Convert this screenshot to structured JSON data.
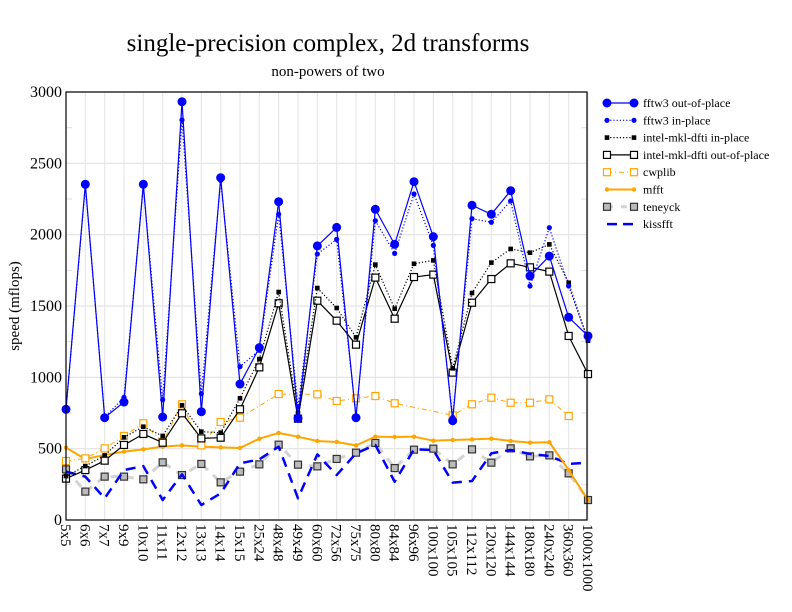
{
  "chart_data": {
    "type": "line",
    "title": "single-precision complex, 2d transforms",
    "subtitle": "non-powers of two",
    "xlabel": "",
    "ylabel": "speed (mflops)",
    "ylim": [
      0,
      3000
    ],
    "yticks": [
      0,
      500,
      1000,
      1500,
      2000,
      2500,
      3000
    ],
    "grid": true,
    "legend_position": "right",
    "categories": [
      "5x5",
      "6x6",
      "7x7",
      "9x9",
      "10x10",
      "11x11",
      "12x12",
      "13x13",
      "14x14",
      "15x15",
      "25x24",
      "48x48",
      "49x49",
      "60x60",
      "72x56",
      "75x75",
      "80x80",
      "84x84",
      "96x96",
      "100x100",
      "105x105",
      "112x112",
      "120x120",
      "144x144",
      "180x180",
      "240x240",
      "360x360",
      "1000x1000"
    ],
    "series": [
      {
        "name": "fftw3 out-of-place",
        "color": "#0000ff",
        "style": "solid",
        "marker": "circle-large",
        "values": [
          776,
          2353,
          717,
          827,
          2353,
          722,
          2932,
          759,
          2399,
          953,
          1208,
          2231,
          713,
          1921,
          2051,
          717,
          2178,
          1932,
          2371,
          1986,
          696,
          2206,
          2143,
          2308,
          1710,
          1850,
          1421,
          1290
        ]
      },
      {
        "name": "fftw3 in-place",
        "color": "#0000ff",
        "style": "dotted",
        "marker": "circle-small",
        "values": [
          776,
          2340,
          720,
          860,
          2340,
          843,
          2804,
          885,
          2380,
          1075,
          1190,
          2143,
          794,
          1864,
          1967,
          730,
          2098,
          1869,
          2285,
          1925,
          720,
          2112,
          2087,
          2236,
          1640,
          2049,
          1640,
          1262
        ]
      },
      {
        "name": "intel-mkl-dfti in-place",
        "color": "#000000",
        "style": "dotted",
        "marker": "square-filled",
        "values": [
          308,
          378,
          453,
          580,
          654,
          589,
          804,
          619,
          612,
          853,
          1128,
          1598,
          748,
          1626,
          1486,
          1280,
          1790,
          1481,
          1796,
          1820,
          1063,
          1591,
          1804,
          1900,
          1874,
          1932,
          1663,
          1257
        ]
      },
      {
        "name": "intel-mkl-dfti out-of-place",
        "color": "#000000",
        "style": "solid",
        "marker": "square-open",
        "values": [
          290,
          350,
          416,
          526,
          603,
          542,
          748,
          572,
          577,
          776,
          1070,
          1519,
          710,
          1537,
          1397,
          1229,
          1699,
          1411,
          1703,
          1720,
          1033,
          1523,
          1689,
          1799,
          1771,
          1741,
          1290,
          1023
        ]
      },
      {
        "name": "cwplib",
        "color": "#ffa500",
        "style": "dashdot",
        "marker": "square-open",
        "values": [
          413,
          432,
          502,
          589,
          678,
          547,
          811,
          523,
          687,
          717,
          null,
          883,
          null,
          881,
          834,
          853,
          869,
          818,
          null,
          null,
          734,
          811,
          857,
          822,
          822,
          846,
          729,
          null
        ]
      },
      {
        "name": "mfft",
        "color": "#ffa500",
        "style": "solid-thick",
        "marker": "dot",
        "values": [
          507,
          427,
          456,
          479,
          495,
          514,
          523,
          514,
          509,
          505,
          570,
          610,
          584,
          554,
          547,
          523,
          584,
          582,
          584,
          556,
          561,
          565,
          570,
          554,
          542,
          545,
          350,
          140
        ]
      },
      {
        "name": "teneyck",
        "color": "#d3d3d3",
        "style": "dashed-light",
        "marker": "square-gray",
        "values": [
          355,
          199,
          304,
          304,
          285,
          404,
          315,
          393,
          264,
          339,
          390,
          528,
          388,
          376,
          428,
          472,
          540,
          364,
          493,
          500,
          390,
          495,
          402,
          502,
          446,
          453,
          327,
          140
        ]
      },
      {
        "name": "kissfft",
        "color": "#0000ff",
        "style": "dashed",
        "marker": "none",
        "values": [
          339,
          304,
          152,
          350,
          378,
          140,
          320,
          105,
          187,
          397,
          425,
          514,
          152,
          460,
          315,
          467,
          526,
          268,
          495,
          491,
          262,
          273,
          467,
          491,
          463,
          449,
          393,
          402
        ]
      }
    ]
  }
}
